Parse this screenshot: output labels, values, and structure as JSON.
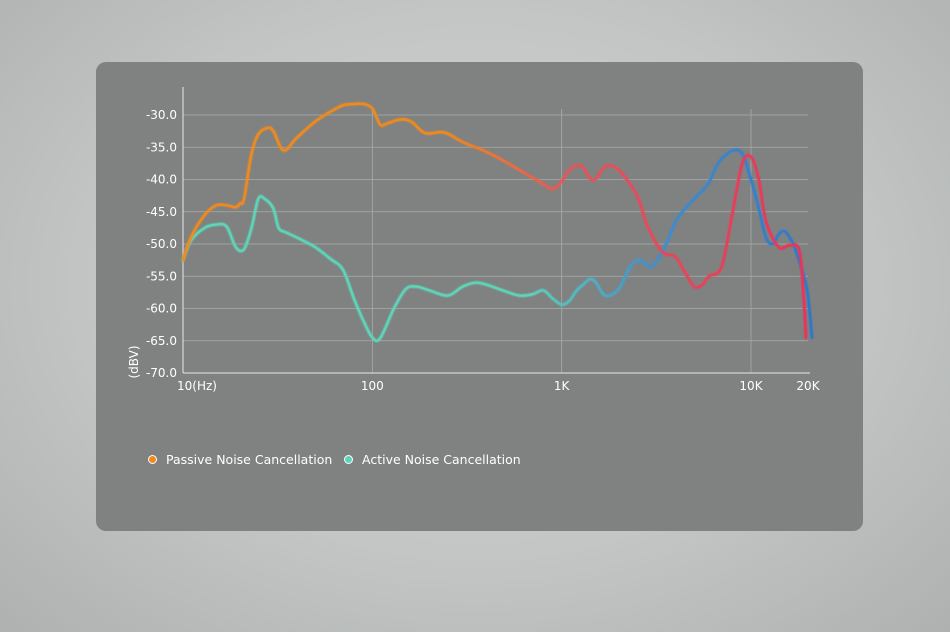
{
  "chart_data": {
    "type": "line",
    "xlabel": "",
    "ylabel": "(dBV)",
    "x_scale": "log",
    "xlim": [
      10,
      20000
    ],
    "ylim": [
      -70,
      -30
    ],
    "x_ticks": [
      {
        "value": 10,
        "label": "10(Hz)"
      },
      {
        "value": 100,
        "label": "100"
      },
      {
        "value": 1000,
        "label": "1K"
      },
      {
        "value": 10000,
        "label": "10K"
      },
      {
        "value": 20000,
        "label": "20K"
      }
    ],
    "y_ticks": [
      {
        "value": -30,
        "label": "-30.0"
      },
      {
        "value": -35,
        "label": "-35.0"
      },
      {
        "value": -40,
        "label": "-40.0"
      },
      {
        "value": -45,
        "label": "-45.0"
      },
      {
        "value": -50,
        "label": "-50.0"
      },
      {
        "value": -55,
        "label": "-55.0"
      },
      {
        "value": -60,
        "label": "-60.0"
      },
      {
        "value": -65,
        "label": "-65.0"
      },
      {
        "value": -70,
        "label": "-70.0"
      }
    ],
    "grid": true,
    "legend_position": "bottom-left",
    "series": [
      {
        "name": "Passive Noise Cancellation",
        "color_start": "#f08a1e",
        "color_end": "#e8335b",
        "x": [
          10,
          11,
          13,
          15,
          17,
          19,
          20,
          21,
          23,
          25,
          28,
          30,
          34,
          40,
          50,
          60,
          70,
          80,
          90,
          100,
          110,
          120,
          140,
          160,
          190,
          240,
          300,
          400,
          500,
          700,
          800,
          900,
          1000,
          1100,
          1200,
          1300,
          1400,
          1500,
          1700,
          2000,
          2500,
          2800,
          3200,
          3500,
          4000,
          4500,
          5000,
          5500,
          6000,
          7000,
          8000,
          9000,
          10000,
          11000,
          12000,
          14000,
          16000,
          18000,
          19000,
          19500
        ],
        "y": [
          -52.5,
          -49,
          -45.5,
          -44,
          -44,
          -44.3,
          -43.7,
          -43,
          -36,
          -33,
          -32,
          -32.5,
          -35.5,
          -33.5,
          -31,
          -29.5,
          -28.5,
          -28.3,
          -28.3,
          -29,
          -31.5,
          -31.3,
          -30.7,
          -31,
          -32.8,
          -32.7,
          -34.2,
          -35.7,
          -37.2,
          -39.7,
          -40.7,
          -41.5,
          -40.3,
          -38.5,
          -37.8,
          -38.1,
          -39.7,
          -40,
          -38,
          -38.5,
          -42.5,
          -46.8,
          -50.2,
          -51.5,
          -52,
          -54.5,
          -56.6,
          -56.4,
          -55,
          -53.5,
          -45,
          -37.5,
          -36.5,
          -40,
          -46.5,
          -50.5,
          -50.2,
          -51,
          -58.5,
          -64.5
        ]
      },
      {
        "name": "Active Noise Cancellation",
        "color_start": "#5ed4b8",
        "color_end": "#2f78c8",
        "x": [
          10,
          11,
          13,
          15,
          17,
          19,
          21,
          23,
          25,
          27,
          30,
          32,
          35,
          40,
          50,
          60,
          70,
          80,
          90,
          100,
          110,
          130,
          150,
          170,
          200,
          250,
          300,
          350,
          400,
          500,
          600,
          700,
          800,
          900,
          1000,
          1100,
          1200,
          1300,
          1400,
          1500,
          1700,
          2000,
          2300,
          2600,
          3000,
          3500,
          4000,
          4500,
          5000,
          5500,
          6000,
          6500,
          7000,
          8000,
          9000,
          10000,
          11000,
          12000,
          13000,
          14000,
          15000,
          16000,
          17000,
          19000,
          20000,
          21000
        ],
        "y": [
          -52.5,
          -49.5,
          -47.5,
          -47,
          -47.3,
          -50.5,
          -50.8,
          -47.5,
          -43,
          -43,
          -44.5,
          -47.5,
          -48.2,
          -49,
          -50.5,
          -52.3,
          -54,
          -58.5,
          -62,
          -64.5,
          -64.6,
          -60,
          -57,
          -56.6,
          -57.2,
          -58,
          -56.6,
          -56,
          -56.3,
          -57.3,
          -58,
          -57.8,
          -57.2,
          -58.5,
          -59.4,
          -58.8,
          -57.2,
          -56.3,
          -55.5,
          -55.8,
          -58,
          -57,
          -53.5,
          -52.5,
          -53.5,
          -50.5,
          -46.5,
          -44.5,
          -43,
          -41.8,
          -40.5,
          -38.2,
          -36.8,
          -35.5,
          -36,
          -40,
          -44.5,
          -49,
          -50,
          -48.5,
          -48,
          -49,
          -50.5,
          -55,
          -58,
          -64.5
        ]
      }
    ]
  },
  "legend": {
    "items": [
      {
        "label": "Passive Noise Cancellation",
        "color": "#f08a1e"
      },
      {
        "label": "Active Noise Cancellation",
        "color": "#5ed4b8"
      }
    ]
  },
  "colors": {
    "card": "#7f8281",
    "grid": "#a8abaa",
    "text": "#ffffff"
  }
}
